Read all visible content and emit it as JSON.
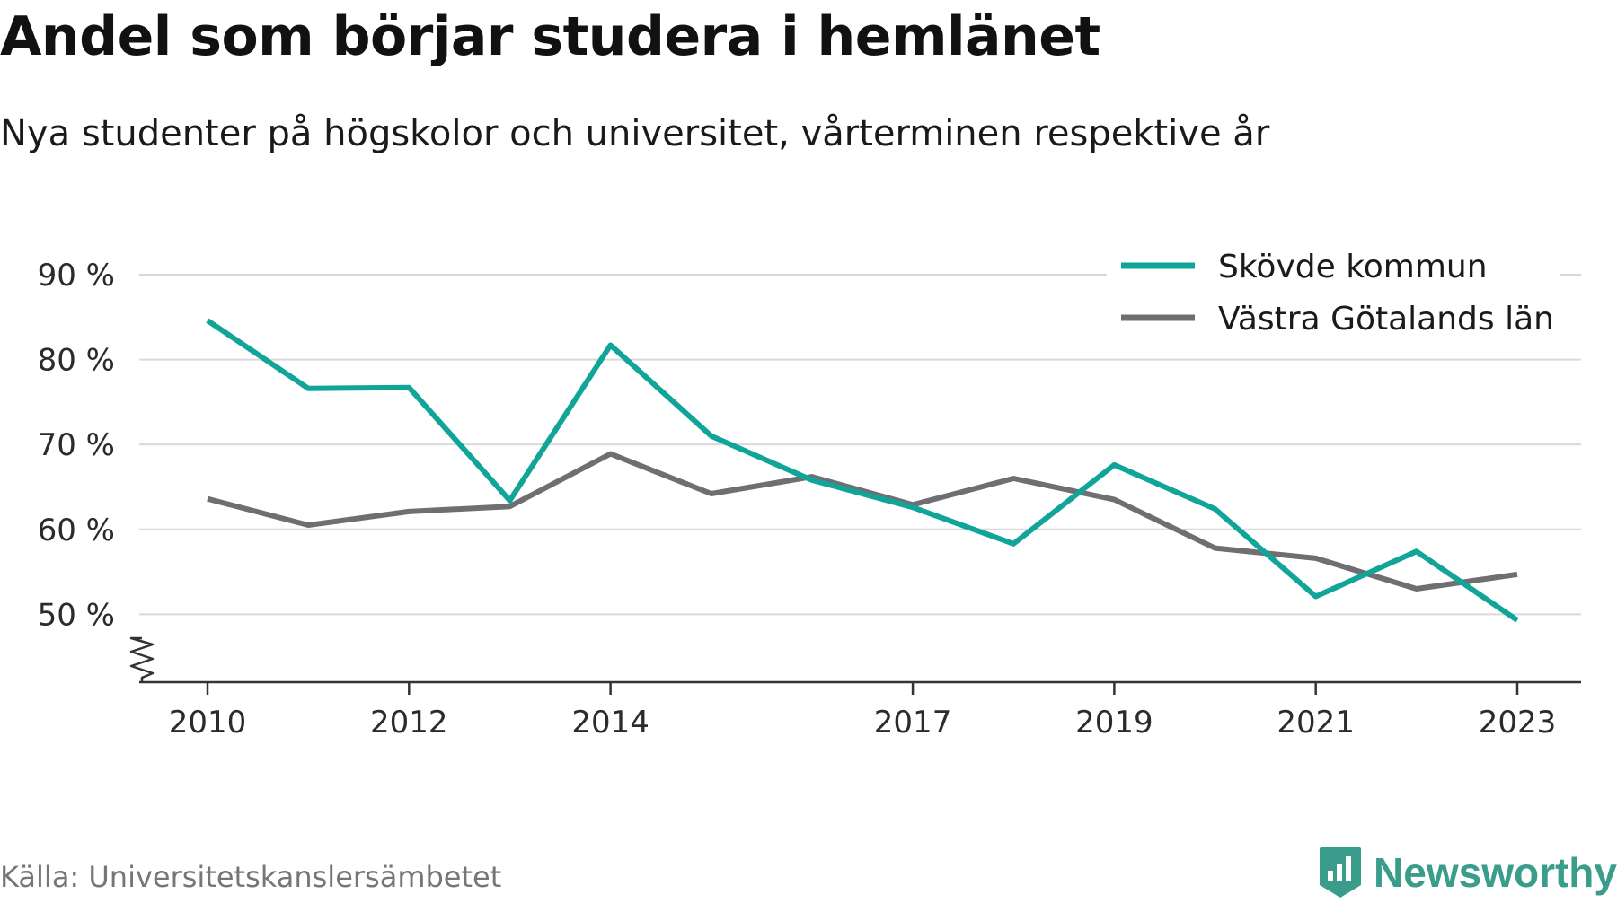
{
  "title": "Andel som börjar studera i hemlänet",
  "subtitle": "Nya studenter på högskolor och universitet, vårterminen respektive år",
  "source": "Källa: Universitetskanslersämbetet",
  "brand": "Newsworthy",
  "colors": {
    "teal": "#11a59a",
    "gray": "#6f6e73",
    "grid": "#d9d9d9",
    "axis": "#333333",
    "brand": "#3a9c8a"
  },
  "chart_data": {
    "type": "line",
    "x": [
      2010,
      2011,
      2012,
      2013,
      2014,
      2015,
      2016,
      2017,
      2018,
      2019,
      2020,
      2021,
      2022,
      2023
    ],
    "x_tick_labels": [
      "2010",
      "2012",
      "2014",
      "2017",
      "2019",
      "2021",
      "2023"
    ],
    "y_tick_values": [
      50,
      60,
      70,
      80,
      90
    ],
    "y_tick_labels": [
      "50 %",
      "60 %",
      "70 %",
      "80 %",
      "90 %"
    ],
    "ylim": [
      42,
      90
    ],
    "y_axis_broken": true,
    "grid": true,
    "legend_position": "top-right",
    "series": [
      {
        "name": "Skövde kommun",
        "color": "#11a59a",
        "values": [
          84.6,
          76.6,
          76.7,
          63.4,
          81.7,
          71.0,
          65.8,
          62.6,
          58.3,
          67.6,
          62.4,
          52.1,
          57.4,
          49.3
        ]
      },
      {
        "name": "Västra Götalands län",
        "color": "#6f6e73",
        "values": [
          63.6,
          60.5,
          62.1,
          62.7,
          68.9,
          64.2,
          66.2,
          62.9,
          66.0,
          63.5,
          57.8,
          56.6,
          53.0,
          54.7
        ]
      }
    ]
  }
}
